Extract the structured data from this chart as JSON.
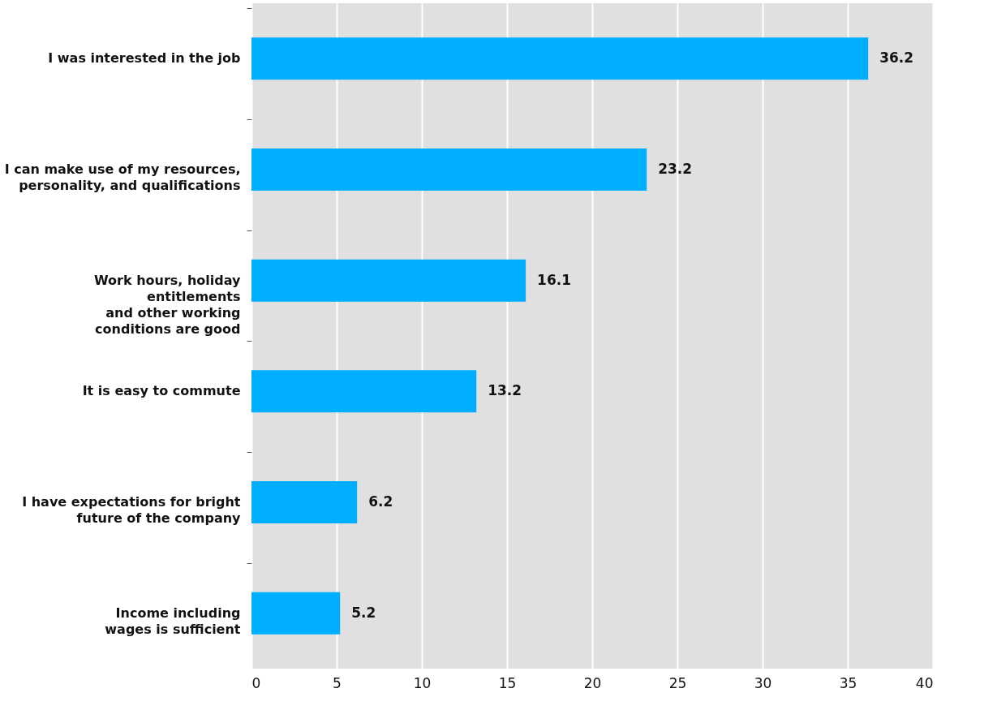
{
  "chart_data": {
    "type": "bar",
    "orientation": "horizontal",
    "categories": [
      "I was interested in the job",
      "I can make use of my resources,\npersonality, and qualifications",
      "Work hours, holiday\nentitlements\nand other working\nconditions are good",
      "It is easy to commute",
      "I have expectations for bright\nfuture of the company",
      "Income including\nwages is sufficient"
    ],
    "values": [
      36.2,
      23.2,
      16.1,
      13.2,
      6.2,
      5.2
    ],
    "color": "#00aeff",
    "xlim": [
      0,
      40
    ],
    "xticks": [
      0,
      5,
      10,
      15,
      20,
      25,
      30,
      35,
      40
    ],
    "grid": "x",
    "data_labels": true
  }
}
